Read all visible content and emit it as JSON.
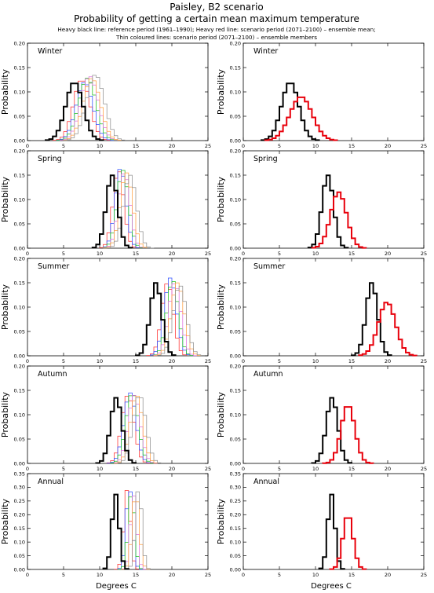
{
  "header": {
    "title": "Paisley, B2 scenario",
    "subtitle": "Probability of getting a certain mean maximum temperature",
    "note_line1": "Heavy black line: reference period (1961–1990); Heavy red line: scenario period (2071–2100) – ensemble mean;",
    "note_line2": "Thin coloured lines: scenario period (2071–2100) – ensemble members"
  },
  "colors": {
    "reference": "#000000",
    "ensemble_mean": "#e8000b",
    "members": [
      "#ff3030",
      "#3050ff",
      "#20c020",
      "#e070e0",
      "#ffa040",
      "#909090",
      "#30c0c0",
      "#c0c000"
    ]
  },
  "chart_data": {
    "type": "line",
    "xlabel": "Degrees C",
    "ylabel": "Probability",
    "xlim": [
      0,
      25
    ],
    "xticks": [
      0,
      5,
      10,
      15,
      20,
      25
    ],
    "panels": [
      {
        "season": "Winter",
        "ylim": [
          0,
          0.2
        ],
        "yticks": [
          0.0,
          0.05,
          0.1,
          0.15,
          0.2
        ],
        "reference": {
          "mean": 6.5,
          "sd": 1.2,
          "peak": 0.12
        },
        "ensemble_mean": {
          "mean": 8.0,
          "sd": 1.55,
          "peak": 0.09
        },
        "members": [
          {
            "mean": 7.5,
            "sd": 1.15,
            "peak": 0.125
          },
          {
            "mean": 7.9,
            "sd": 1.15,
            "peak": 0.12
          },
          {
            "mean": 8.3,
            "sd": 1.2,
            "peak": 0.128
          },
          {
            "mean": 8.6,
            "sd": 1.2,
            "peak": 0.132
          },
          {
            "mean": 8.9,
            "sd": 1.2,
            "peak": 0.128
          },
          {
            "mean": 9.4,
            "sd": 1.25,
            "peak": 0.135
          }
        ]
      },
      {
        "season": "Spring",
        "ylim": [
          0,
          0.2
        ],
        "yticks": [
          0.0,
          0.05,
          0.1,
          0.15,
          0.2
        ],
        "reference": {
          "mean": 11.7,
          "sd": 0.8,
          "peak": 0.15
        },
        "ensemble_mean": {
          "mean": 13.2,
          "sd": 1.1,
          "peak": 0.115
        },
        "members": [
          {
            "mean": 12.6,
            "sd": 0.75,
            "peak": 0.16
          },
          {
            "mean": 12.9,
            "sd": 0.75,
            "peak": 0.165
          },
          {
            "mean": 13.2,
            "sd": 0.8,
            "peak": 0.16
          },
          {
            "mean": 13.4,
            "sd": 0.8,
            "peak": 0.155
          },
          {
            "mean": 13.7,
            "sd": 0.85,
            "peak": 0.155
          },
          {
            "mean": 14.2,
            "sd": 0.9,
            "peak": 0.15
          }
        ]
      },
      {
        "season": "Summer",
        "ylim": [
          0,
          0.2
        ],
        "yticks": [
          0.0,
          0.05,
          0.1,
          0.15,
          0.2
        ],
        "reference": {
          "mean": 17.8,
          "sd": 0.8,
          "peak": 0.15
        },
        "ensemble_mean": {
          "mean": 19.9,
          "sd": 1.2,
          "peak": 0.11
        },
        "members": [
          {
            "mean": 19.4,
            "sd": 0.8,
            "peak": 0.15
          },
          {
            "mean": 19.8,
            "sd": 0.85,
            "peak": 0.16
          },
          {
            "mean": 20.1,
            "sd": 0.8,
            "peak": 0.155
          },
          {
            "mean": 20.4,
            "sd": 0.85,
            "peak": 0.15
          },
          {
            "mean": 20.8,
            "sd": 0.9,
            "peak": 0.15
          },
          {
            "mean": 21.1,
            "sd": 0.9,
            "peak": 0.145
          }
        ]
      },
      {
        "season": "Autumn",
        "ylim": [
          0,
          0.2
        ],
        "yticks": [
          0.0,
          0.05,
          0.1,
          0.15,
          0.2
        ],
        "reference": {
          "mean": 12.3,
          "sd": 0.8,
          "peak": 0.135
        },
        "ensemble_mean": {
          "mean": 14.5,
          "sd": 0.95,
          "peak": 0.12
        },
        "members": [
          {
            "mean": 13.9,
            "sd": 0.85,
            "peak": 0.14
          },
          {
            "mean": 14.2,
            "sd": 0.85,
            "peak": 0.145
          },
          {
            "mean": 14.5,
            "sd": 0.85,
            "peak": 0.145
          },
          {
            "mean": 14.8,
            "sd": 0.85,
            "peak": 0.14
          },
          {
            "mean": 15.1,
            "sd": 0.85,
            "peak": 0.14
          },
          {
            "mean": 15.5,
            "sd": 0.9,
            "peak": 0.14
          }
        ]
      },
      {
        "season": "Annual",
        "ylim": [
          0,
          0.35
        ],
        "yticks": [
          0.0,
          0.05,
          0.1,
          0.15,
          0.2,
          0.25,
          0.3,
          0.35
        ],
        "reference": {
          "mean": 12.2,
          "sd": 0.5,
          "peak": 0.275
        },
        "ensemble_mean": {
          "mean": 14.5,
          "sd": 0.7,
          "peak": 0.2
        },
        "members": [
          {
            "mean": 13.8,
            "sd": 0.45,
            "peak": 0.29
          },
          {
            "mean": 14.1,
            "sd": 0.45,
            "peak": 0.3
          },
          {
            "mean": 14.4,
            "sd": 0.45,
            "peak": 0.28
          },
          {
            "mean": 14.7,
            "sd": 0.45,
            "peak": 0.27
          },
          {
            "mean": 15.0,
            "sd": 0.5,
            "peak": 0.28
          },
          {
            "mean": 15.4,
            "sd": 0.45,
            "peak": 0.3
          }
        ]
      }
    ]
  }
}
